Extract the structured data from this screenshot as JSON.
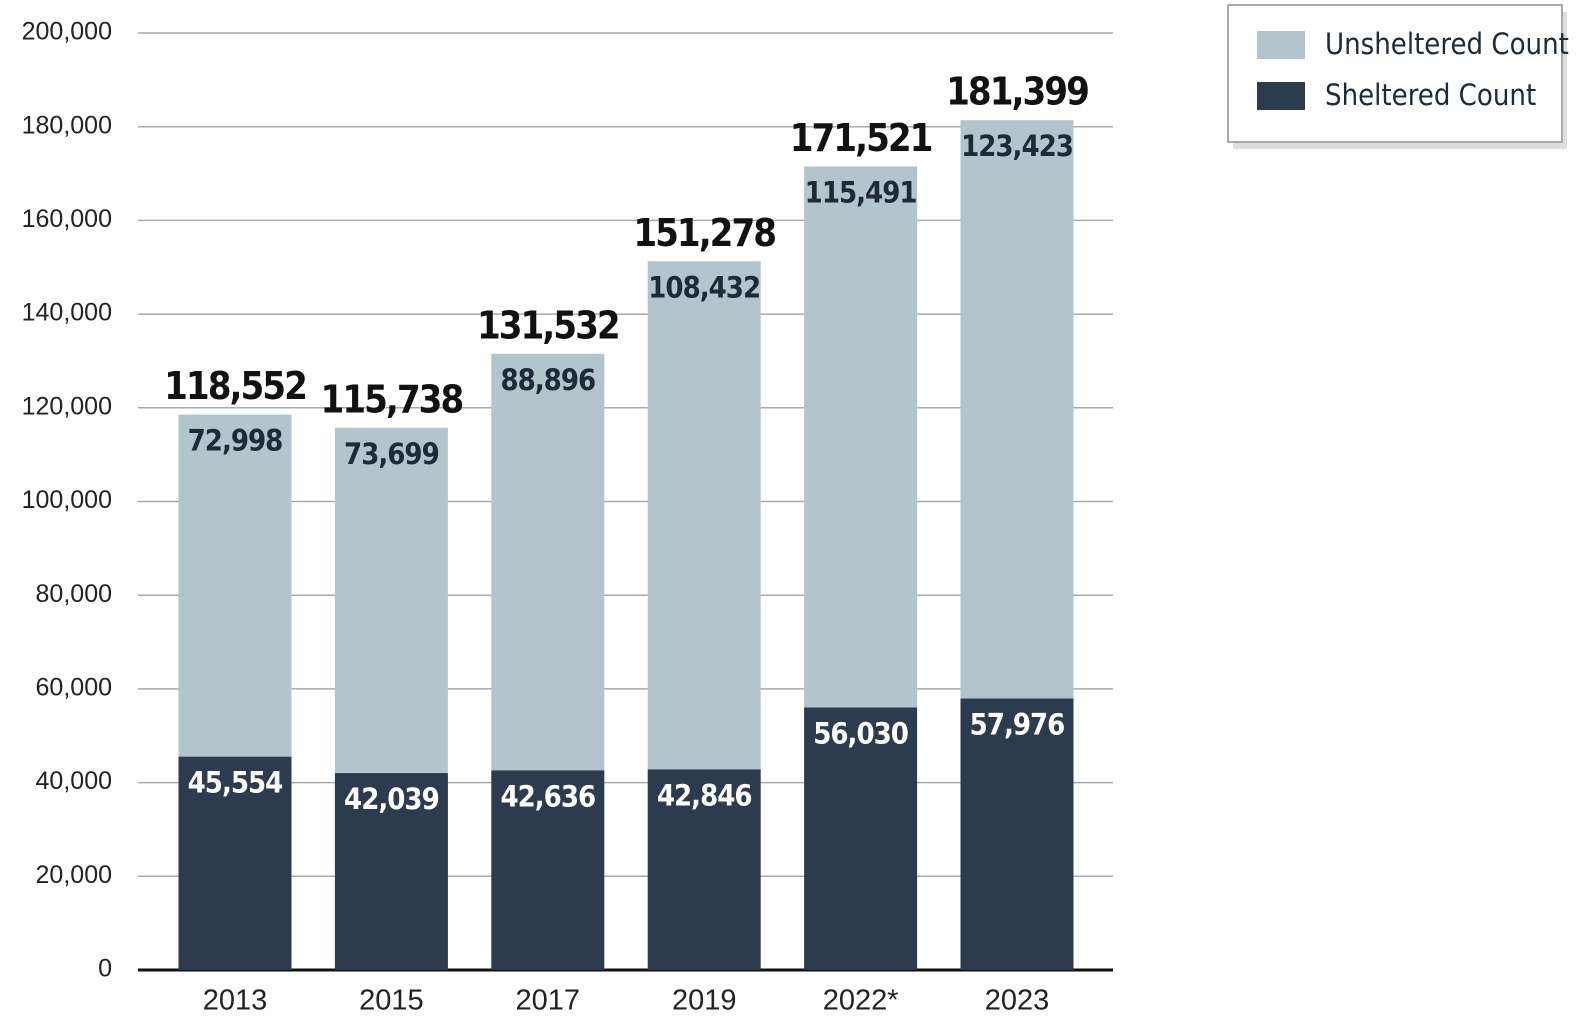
{
  "chart_data": {
    "type": "stacked-bar",
    "categories": [
      "2013",
      "2015",
      "2017",
      "2019",
      "2022*",
      "2023"
    ],
    "series": [
      {
        "name": "Sheltered Count",
        "color": "#2d3b4e",
        "values": [
          45554,
          42039,
          42636,
          42846,
          56030,
          57976
        ],
        "value_labels": [
          "45,554",
          "42,039",
          "42,636",
          "42,846",
          "56,030",
          "57,976"
        ]
      },
      {
        "name": "Unsheltered Count",
        "color": "#b2c5cc",
        "values": [
          72998,
          73699,
          88896,
          108432,
          115491,
          123423
        ],
        "value_labels": [
          "72,998",
          "73,699",
          "88,896",
          "108,432",
          "115,491",
          "123,423"
        ]
      }
    ],
    "totals": [
      118552,
      115738,
      131532,
      151278,
      171521,
      181399
    ],
    "total_labels": [
      "118,552",
      "115,738",
      "131,532",
      "151,278",
      "171,521",
      "181,399"
    ],
    "ylim": [
      0,
      200000
    ],
    "yticks": [
      0,
      {
        "value": 20000,
        "label": "20,000"
      },
      {
        "value": 40000,
        "label": "40,000"
      },
      {
        "value": 60000,
        "label": "60,000"
      },
      {
        "value": 80000,
        "label": "80,000"
      },
      {
        "value": 100000,
        "label": "100,000"
      },
      {
        "value": 120000,
        "label": "120,000"
      },
      {
        "value": 140000,
        "label": "140,000"
      },
      {
        "value": 160000,
        "label": "160,000"
      },
      {
        "value": 180000,
        "label": "180,000"
      },
      {
        "value": 200000,
        "label": "200,000"
      }
    ],
    "grid": true,
    "legend": "top-right"
  }
}
